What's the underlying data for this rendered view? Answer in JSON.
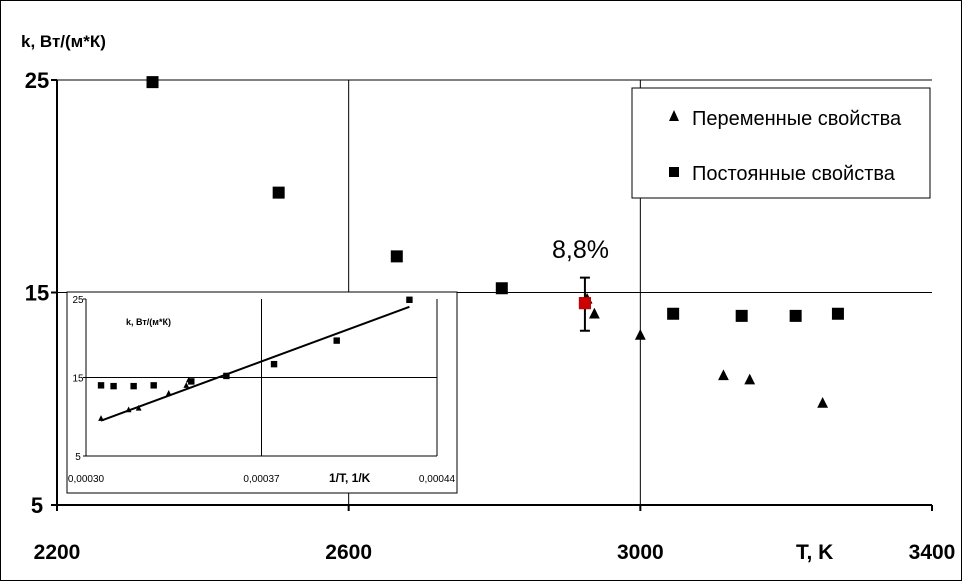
{
  "chart_data": [
    {
      "type": "scatter",
      "ylabel": "k, Вт/(м*К)",
      "xlabel": "T, K",
      "xlim": [
        2200,
        3400
      ],
      "ylim": [
        5,
        25
      ],
      "x_ticks": [
        "2200",
        "2600",
        "3000",
        "3400"
      ],
      "y_ticks": [
        "5",
        "15",
        "25"
      ],
      "grid": true,
      "legend_position": "top-right",
      "annotation": "8,8%",
      "series": [
        {
          "name": "Переменные свойства",
          "marker": "triangle",
          "color": "#000000",
          "points": [
            {
              "x": 2927,
              "y": 14.7
            },
            {
              "x": 2937,
              "y": 14.0
            },
            {
              "x": 3000,
              "y": 13.0
            },
            {
              "x": 3114,
              "y": 11.1
            },
            {
              "x": 3150,
              "y": 10.9
            },
            {
              "x": 3250,
              "y": 9.8
            }
          ]
        },
        {
          "name": "Постоянные свойства",
          "marker": "square",
          "color": "#000000",
          "points": [
            {
              "x": 2331,
              "y": 24.9
            },
            {
              "x": 2504,
              "y": 19.7
            },
            {
              "x": 2666,
              "y": 16.7
            },
            {
              "x": 2810,
              "y": 15.2
            },
            {
              "x": 2924,
              "y": 14.5
            },
            {
              "x": 3045,
              "y": 14.0
            },
            {
              "x": 3139,
              "y": 13.9
            },
            {
              "x": 3213,
              "y": 13.9
            },
            {
              "x": 3271,
              "y": 14.0
            }
          ]
        }
      ],
      "highlight_point": {
        "x": 2924,
        "y": 14.5,
        "color": "#cc0000"
      },
      "error_bar": {
        "x": 2924,
        "y": 14.5,
        "low": 13.2,
        "high": 15.7
      }
    },
    {
      "type": "scatter",
      "ylabel": "k, Вт/(м*К)",
      "xlabel": "1/T, 1/K",
      "xlim": [
        0.0003,
        0.00044
      ],
      "ylim": [
        5,
        25
      ],
      "x_ticks": [
        "0,00030",
        "0,00037",
        "0,00044"
      ],
      "y_ticks": [
        "5",
        "15",
        "25"
      ],
      "grid": true,
      "series": [
        {
          "name": "Переменные свойства",
          "marker": "triangle",
          "color": "#000000",
          "points": [
            {
              "x": 0.000306,
              "y": 9.8
            },
            {
              "x": 0.000317,
              "y": 10.9
            },
            {
              "x": 0.000321,
              "y": 11.1
            },
            {
              "x": 0.000333,
              "y": 13.0
            },
            {
              "x": 0.00034,
              "y": 14.0
            },
            {
              "x": 0.000341,
              "y": 14.7
            }
          ]
        },
        {
          "name": "Постоянные свойства",
          "marker": "square",
          "color": "#000000",
          "points": [
            {
              "x": 0.000306,
              "y": 14.0
            },
            {
              "x": 0.000311,
              "y": 13.9
            },
            {
              "x": 0.000319,
              "y": 13.9
            },
            {
              "x": 0.000327,
              "y": 14.0
            },
            {
              "x": 0.000342,
              "y": 14.5
            },
            {
              "x": 0.000356,
              "y": 15.2
            },
            {
              "x": 0.000375,
              "y": 16.7
            },
            {
              "x": 0.0004,
              "y": 19.7
            },
            {
              "x": 0.000429,
              "y": 24.9
            }
          ]
        }
      ],
      "trend_line": {
        "x": [
          0.000306,
          0.000429
        ],
        "y": [
          9.5,
          24.0
        ],
        "color": "#000000"
      }
    }
  ]
}
